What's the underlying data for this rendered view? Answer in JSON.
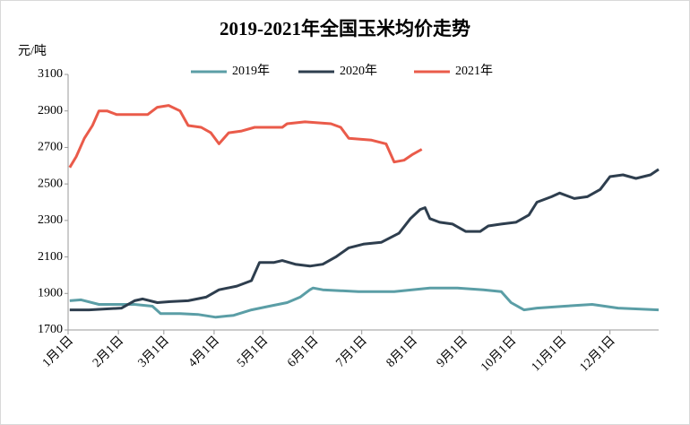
{
  "chart_data": {
    "type": "line",
    "title": "2019-2021年全国玉米均价走势",
    "y_label": "元/吨",
    "xlim": [
      1,
      365
    ],
    "xticks": [
      {
        "value": 1,
        "label": "1月1日"
      },
      {
        "value": 32,
        "label": "2月1日"
      },
      {
        "value": 60,
        "label": "3月1日"
      },
      {
        "value": 91,
        "label": "4月1日"
      },
      {
        "value": 121,
        "label": "5月1日"
      },
      {
        "value": 152,
        "label": "6月1日"
      },
      {
        "value": 182,
        "label": "7月1日"
      },
      {
        "value": 213,
        "label": "8月1日"
      },
      {
        "value": 244,
        "label": "9月1日"
      },
      {
        "value": 274,
        "label": "10月1日"
      },
      {
        "value": 305,
        "label": "11月1日"
      },
      {
        "value": 335,
        "label": "12月1日"
      }
    ],
    "ylim": [
      1700,
      3100
    ],
    "yticks": [
      1700,
      1900,
      2100,
      2300,
      2500,
      2700,
      2900,
      3100
    ],
    "grid": false,
    "legend": "top",
    "series": [
      {
        "name": "2019年",
        "color": "#5b9ea6",
        "x": [
          2,
          9,
          20,
          42,
          53,
          58,
          70,
          81,
          92,
          103,
          114,
          125,
          136,
          144,
          150,
          152,
          158,
          180,
          202,
          213,
          224,
          241,
          257,
          268,
          274,
          282,
          290,
          307,
          324,
          340,
          365
        ],
        "values": [
          1860,
          1865,
          1840,
          1840,
          1830,
          1790,
          1790,
          1785,
          1770,
          1780,
          1810,
          1830,
          1850,
          1880,
          1920,
          1930,
          1920,
          1910,
          1910,
          1920,
          1930,
          1930,
          1920,
          1910,
          1850,
          1810,
          1820,
          1830,
          1840,
          1820,
          1810
        ]
      },
      {
        "name": "2020年",
        "color": "#2e3e4e",
        "x": [
          2,
          14,
          34,
          42,
          47,
          56,
          64,
          75,
          86,
          94,
          105,
          114,
          119,
          128,
          133,
          141,
          150,
          158,
          166,
          174,
          183,
          194,
          205,
          212,
          218,
          221,
          224,
          230,
          238,
          246,
          255,
          260,
          268,
          277,
          285,
          290,
          299,
          304,
          313,
          321,
          329,
          335,
          343,
          351,
          360,
          365
        ],
        "values": [
          1810,
          1810,
          1820,
          1860,
          1870,
          1850,
          1855,
          1860,
          1880,
          1920,
          1940,
          1970,
          2070,
          2070,
          2080,
          2060,
          2050,
          2060,
          2100,
          2150,
          2170,
          2180,
          2230,
          2310,
          2360,
          2370,
          2310,
          2290,
          2280,
          2240,
          2240,
          2270,
          2280,
          2290,
          2330,
          2400,
          2430,
          2450,
          2420,
          2430,
          2470,
          2540,
          2550,
          2530,
          2550,
          2580
        ]
      },
      {
        "name": "2021年",
        "color": "#ea5b4a",
        "x": [
          2,
          6,
          11,
          16,
          20,
          25,
          31,
          50,
          56,
          63,
          70,
          75,
          83,
          89,
          94,
          100,
          108,
          116,
          133,
          136,
          147,
          163,
          169,
          174,
          188,
          197,
          202,
          208,
          213,
          219
        ],
        "values": [
          2590,
          2650,
          2750,
          2820,
          2900,
          2900,
          2880,
          2880,
          2920,
          2930,
          2900,
          2820,
          2810,
          2780,
          2720,
          2780,
          2790,
          2810,
          2810,
          2830,
          2840,
          2830,
          2810,
          2750,
          2740,
          2720,
          2620,
          2630,
          2660,
          2690
        ]
      }
    ]
  }
}
